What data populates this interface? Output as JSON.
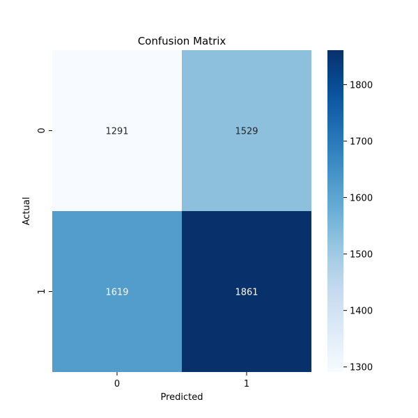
{
  "chart_data": {
    "type": "heatmap",
    "title": "Confusion Matrix",
    "xlabel": "Predicted",
    "ylabel": "Actual",
    "x_categories": [
      "0",
      "1"
    ],
    "y_categories": [
      "0",
      "1"
    ],
    "values": [
      [
        1291,
        1529
      ],
      [
        1619,
        1861
      ]
    ],
    "colormap": "Blues",
    "color_range": [
      1291,
      1861
    ],
    "colorbar": {
      "ticks": [
        1300,
        1400,
        1500,
        1600,
        1700,
        1800
      ],
      "tick_labels": [
        "1300",
        "1400",
        "1500",
        "1600",
        "1700",
        "1800"
      ]
    },
    "grid": false
  }
}
